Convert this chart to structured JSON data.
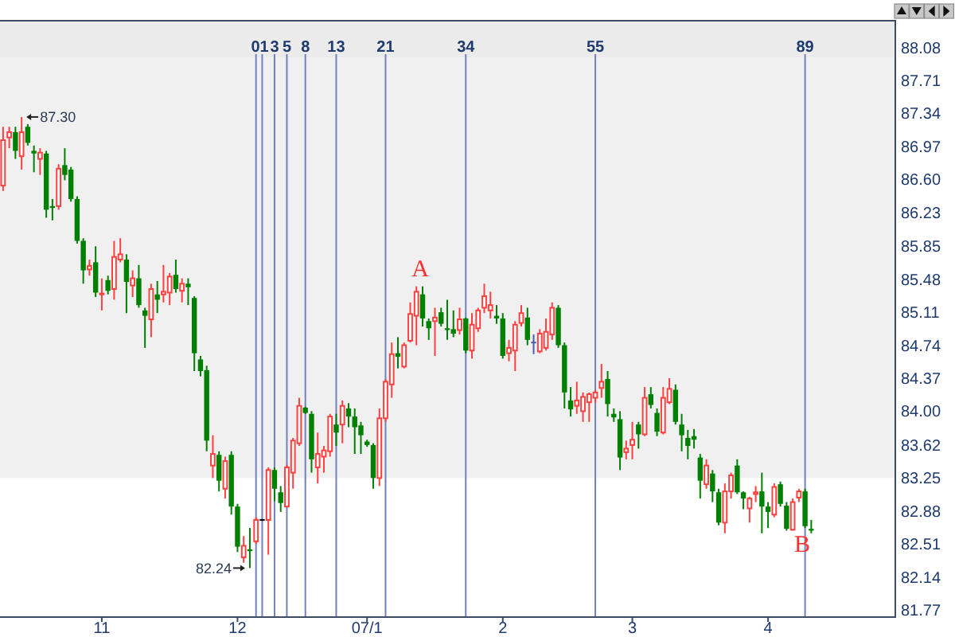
{
  "chart_data": {
    "type": "candlestick",
    "categories": [
      null,
      null,
      null,
      null,
      null,
      null,
      null,
      null,
      null,
      null,
      null,
      null,
      null,
      null,
      null,
      null,
      "11",
      null,
      null,
      null,
      null,
      null,
      null,
      null,
      null,
      null,
      null,
      null,
      null,
      null,
      null,
      null,
      null,
      null,
      null,
      null,
      null,
      null,
      "12",
      null,
      null,
      null,
      null,
      null,
      null,
      null,
      null,
      null,
      null,
      null,
      null,
      null,
      null,
      null,
      null,
      null,
      null,
      null,
      null,
      "07/1",
      null,
      null,
      null,
      null,
      null,
      null,
      null,
      null,
      null,
      null,
      null,
      null,
      null,
      null,
      null,
      null,
      null,
      null,
      null,
      null,
      null,
      "2",
      null,
      null,
      null,
      null,
      null,
      null,
      null,
      null,
      null,
      null,
      null,
      null,
      null,
      null,
      null,
      null,
      null,
      null,
      null,
      null,
      "3",
      null,
      null,
      null,
      null,
      null,
      null,
      null,
      null,
      null,
      null,
      null,
      null,
      null,
      null,
      null,
      null,
      null,
      null,
      null,
      null,
      null,
      "4",
      null,
      null,
      null,
      null,
      null,
      null,
      null,
      null,
      null,
      null,
      null,
      null,
      null,
      null,
      null,
      null,
      null,
      null,
      null,
      null
    ],
    "ohlc": [
      [
        86.53,
        87.19,
        86.47,
        87.04
      ],
      [
        87.07,
        87.19,
        86.95,
        87.13
      ],
      [
        87.13,
        87.19,
        86.83,
        86.92
      ],
      [
        86.86,
        87.3,
        86.71,
        87.13
      ],
      [
        87.19,
        87.22,
        86.98,
        87.01
      ],
      [
        86.92,
        86.98,
        86.68,
        86.89
      ],
      [
        86.83,
        86.95,
        86.65,
        86.9
      ],
      [
        86.89,
        86.92,
        86.17,
        86.26
      ],
      [
        86.3,
        86.38,
        86.14,
        86.28
      ],
      [
        86.3,
        86.77,
        86.26,
        86.72
      ],
      [
        86.76,
        86.95,
        86.59,
        86.65
      ],
      [
        86.71,
        86.74,
        86.35,
        86.38
      ],
      [
        86.38,
        86.41,
        85.88,
        85.91
      ],
      [
        85.91,
        85.94,
        85.43,
        85.58
      ],
      [
        85.59,
        85.7,
        85.52,
        85.63
      ],
      [
        85.67,
        85.85,
        85.28,
        85.33
      ],
      [
        85.31,
        85.49,
        85.13,
        85.32
      ],
      [
        85.47,
        85.52,
        85.31,
        85.35
      ],
      [
        85.37,
        85.91,
        85.25,
        85.73
      ],
      [
        85.7,
        85.94,
        85.67,
        85.76
      ],
      [
        85.7,
        85.76,
        85.1,
        85.45
      ],
      [
        85.41,
        85.58,
        85.28,
        85.49
      ],
      [
        85.49,
        85.64,
        85.16,
        85.19
      ],
      [
        85.13,
        85.16,
        84.71,
        85.07
      ],
      [
        85.03,
        85.43,
        84.83,
        85.37
      ],
      [
        85.31,
        85.46,
        85.1,
        85.25
      ],
      [
        85.31,
        85.64,
        85.22,
        85.34
      ],
      [
        85.33,
        85.55,
        85.19,
        85.51
      ],
      [
        85.53,
        85.7,
        85.33,
        85.37
      ],
      [
        85.35,
        85.49,
        85.22,
        85.43
      ],
      [
        85.43,
        85.49,
        85.19,
        85.39
      ],
      [
        85.27,
        85.29,
        84.45,
        84.65
      ],
      [
        84.58,
        84.62,
        84.39,
        84.45
      ],
      [
        84.46,
        84.51,
        83.55,
        83.67
      ],
      [
        83.39,
        83.73,
        83.25,
        83.52
      ],
      [
        83.51,
        83.55,
        83.1,
        83.22
      ],
      [
        83.13,
        83.49,
        83.02,
        83.44
      ],
      [
        83.51,
        83.55,
        82.84,
        82.93
      ],
      [
        82.93,
        82.96,
        82.42,
        82.48
      ],
      [
        82.36,
        82.6,
        82.3,
        82.49
      ],
      [
        82.45,
        82.69,
        82.24,
        82.43
      ],
      [
        82.54,
        82.81,
        82.51,
        82.78
      ],
      [
        82.78,
        82.79,
        82.77,
        82.78
      ],
      [
        82.78,
        83.37,
        82.39,
        83.34
      ],
      [
        83.34,
        83.37,
        82.99,
        83.13
      ],
      [
        83.09,
        83.16,
        82.87,
        82.97
      ],
      [
        82.93,
        83.4,
        82.92,
        83.37
      ],
      [
        83.31,
        83.7,
        83.13,
        83.67
      ],
      [
        83.64,
        84.15,
        83.61,
        84.06
      ],
      [
        84.04,
        84.05,
        83.97,
        83.98
      ],
      [
        83.97,
        84.0,
        83.31,
        83.46
      ],
      [
        83.37,
        83.76,
        83.19,
        83.52
      ],
      [
        83.49,
        83.61,
        83.31,
        83.56
      ],
      [
        83.55,
        83.97,
        83.49,
        83.94
      ],
      [
        83.85,
        83.97,
        83.61,
        83.76
      ],
      [
        83.85,
        84.12,
        83.64,
        84.06
      ],
      [
        84.03,
        84.09,
        83.82,
        83.94
      ],
      [
        83.94,
        84.03,
        83.52,
        83.82
      ],
      [
        83.84,
        83.88,
        83.52,
        83.73
      ],
      [
        83.66,
        83.68,
        83.6,
        83.62
      ],
      [
        83.62,
        83.64,
        83.13,
        83.25
      ],
      [
        83.25,
        84.03,
        83.16,
        83.92
      ],
      [
        83.92,
        84.36,
        83.88,
        84.33
      ],
      [
        84.3,
        84.77,
        84.15,
        84.64
      ],
      [
        84.65,
        84.83,
        84.48,
        84.61
      ],
      [
        84.5,
        84.77,
        84.48,
        84.74
      ],
      [
        84.79,
        85.22,
        84.77,
        85.09
      ],
      [
        85.07,
        85.4,
        84.74,
        85.34
      ],
      [
        85.31,
        85.4,
        84.95,
        85.04
      ],
      [
        85.01,
        85.04,
        84.8,
        84.93
      ],
      [
        85.01,
        85.16,
        84.62,
        85.05
      ],
      [
        85.11,
        85.16,
        84.95,
        84.98
      ],
      [
        84.93,
        85.25,
        84.8,
        84.91
      ],
      [
        84.92,
        85.13,
        84.83,
        84.87
      ],
      [
        84.91,
        85.16,
        84.86,
        85.03
      ],
      [
        85.04,
        85.05,
        84.65,
        84.68
      ],
      [
        84.68,
        85.1,
        84.59,
        84.97
      ],
      [
        84.93,
        85.16,
        84.89,
        85.13
      ],
      [
        85.16,
        85.43,
        85.1,
        85.29
      ],
      [
        85.13,
        85.34,
        85.04,
        85.19
      ],
      [
        85.07,
        85.19,
        84.98,
        85.04
      ],
      [
        85.04,
        85.1,
        84.59,
        84.62
      ],
      [
        84.65,
        84.8,
        84.56,
        84.71
      ],
      [
        84.68,
        85.01,
        84.45,
        84.97
      ],
      [
        84.99,
        85.19,
        84.95,
        85.1
      ],
      [
        85.05,
        85.16,
        84.74,
        84.8
      ],
      [
        84.77,
        84.86,
        84.64,
        84.77
      ],
      [
        84.67,
        84.92,
        84.65,
        84.87
      ],
      [
        84.71,
        85.04,
        84.68,
        84.89
      ],
      [
        84.86,
        85.22,
        84.8,
        85.16
      ],
      [
        85.16,
        85.19,
        84.71,
        84.74
      ],
      [
        84.74,
        84.77,
        84.03,
        84.21
      ],
      [
        84.12,
        84.27,
        83.94,
        84.02
      ],
      [
        84.06,
        84.33,
        83.97,
        84.12
      ],
      [
        84.0,
        84.21,
        83.88,
        84.16
      ],
      [
        84.1,
        84.21,
        83.88,
        84.19
      ],
      [
        84.15,
        84.24,
        84.09,
        84.21
      ],
      [
        84.26,
        84.53,
        84.15,
        84.33
      ],
      [
        84.36,
        84.45,
        83.94,
        84.08
      ],
      [
        83.97,
        84.03,
        83.88,
        83.93
      ],
      [
        83.91,
        84.0,
        83.34,
        83.48
      ],
      [
        83.54,
        83.67,
        83.46,
        83.58
      ],
      [
        83.62,
        83.88,
        83.46,
        83.68
      ],
      [
        83.85,
        83.88,
        83.58,
        83.74
      ],
      [
        83.74,
        84.27,
        83.72,
        84.15
      ],
      [
        84.19,
        84.27,
        84.03,
        84.07
      ],
      [
        83.98,
        84.03,
        83.72,
        83.77
      ],
      [
        83.76,
        84.27,
        83.74,
        84.15
      ],
      [
        84.1,
        84.37,
        84.08,
        84.25
      ],
      [
        84.24,
        84.3,
        83.85,
        83.88
      ],
      [
        83.85,
        83.97,
        83.55,
        83.73
      ],
      [
        83.7,
        83.79,
        83.46,
        83.61
      ],
      [
        83.72,
        83.8,
        83.58,
        83.68
      ],
      [
        83.48,
        83.52,
        83.02,
        83.22
      ],
      [
        83.18,
        83.46,
        83.13,
        83.39
      ],
      [
        83.3,
        83.34,
        82.98,
        83.1
      ],
      [
        83.09,
        83.13,
        82.72,
        82.75
      ],
      [
        82.75,
        83.19,
        82.63,
        83.1
      ],
      [
        83.1,
        83.31,
        83.02,
        83.28
      ],
      [
        83.39,
        83.46,
        83.07,
        83.09
      ],
      [
        83.09,
        83.1,
        82.9,
        83.02
      ],
      [
        82.91,
        83.04,
        82.75,
        83.02
      ],
      [
        83.07,
        83.16,
        82.98,
        83.09
      ],
      [
        83.1,
        83.31,
        82.63,
        82.93
      ],
      [
        82.93,
        82.98,
        82.69,
        82.87
      ],
      [
        82.84,
        83.19,
        82.81,
        83.15
      ],
      [
        83.18,
        83.21,
        82.93,
        82.96
      ],
      [
        82.94,
        82.98,
        82.66,
        82.68
      ],
      [
        82.67,
        83.02,
        82.66,
        82.98
      ],
      [
        83.03,
        83.13,
        82.98,
        83.1
      ],
      [
        83.1,
        83.13,
        82.69,
        82.71
      ],
      [
        82.68,
        82.78,
        82.63,
        82.66
      ],
      null,
      null,
      null,
      null,
      null,
      null,
      null,
      null,
      null,
      null,
      null,
      null,
      null
    ],
    "colors": [
      "#ff4040",
      "#ff4040",
      "#008000",
      "#ff4040",
      "#008000",
      "#008000",
      "#ff4040",
      "#008000",
      "#008000",
      "#ff4040",
      "#008000",
      "#008000",
      "#008000",
      "#008000",
      "#ff4040",
      "#008000",
      "#ff4040",
      "#008000",
      "#ff4040",
      "#ff4040",
      "#008000",
      "#ff4040",
      "#008000",
      "#008000",
      "#ff4040",
      "#008000",
      "#ff4040",
      "#ff4040",
      "#008000",
      "#ff4040",
      "#008000",
      "#008000",
      "#008000",
      "#008000",
      "#ff4040",
      "#008000",
      "#ff4040",
      "#008000",
      "#008000",
      "#ff4040",
      "#008000",
      "#ff4040",
      "#000000",
      "#ff4040",
      "#008000",
      "#008000",
      "#ff4040",
      "#ff4040",
      "#ff4040",
      "#008000",
      "#008000",
      "#ff4040",
      "#ff4040",
      "#ff4040",
      "#008000",
      "#ff4040",
      "#008000",
      "#008000",
      "#008000",
      "#008000",
      "#008000",
      "#ff4040",
      "#ff4040",
      "#ff4040",
      "#008000",
      "#ff4040",
      "#ff4040",
      "#ff4040",
      "#008000",
      "#008000",
      "#ff4040",
      "#008000",
      "#008000",
      "#008000",
      "#ff4040",
      "#008000",
      "#ff4040",
      "#ff4040",
      "#ff4040",
      "#ff4040",
      "#008000",
      "#008000",
      "#ff4040",
      "#ff4040",
      "#ff4040",
      "#008000",
      "#4b5cb0",
      "#ff4040",
      "#ff4040",
      "#ff4040",
      "#008000",
      "#008000",
      "#008000",
      "#ff4040",
      "#ff4040",
      "#ff4040",
      "#ff4040",
      "#ff4040",
      "#008000",
      "#008000",
      "#008000",
      "#ff4040",
      "#ff4040",
      "#008000",
      "#ff4040",
      "#008000",
      "#008000",
      "#ff4040",
      "#ff4040",
      "#008000",
      "#008000",
      "#008000",
      "#008000",
      "#008000",
      "#ff4040",
      "#008000",
      "#008000",
      "#ff4040",
      "#ff4040",
      "#008000",
      "#008000",
      "#ff4040",
      "#ff4040",
      "#008000",
      "#008000",
      "#ff4040",
      "#008000",
      "#008000",
      "#ff4040",
      "#ff4040",
      "#008000",
      "#008000",
      null,
      null,
      null,
      null,
      null,
      null,
      null,
      null,
      null,
      null,
      null,
      null,
      null
    ],
    "x2lim": [
      -41.5,
      103.5
    ],
    "x2ticks": [
      0,
      1,
      3,
      5,
      8,
      13,
      21,
      34,
      55,
      89
    ],
    "ylim": [
      81.69,
      88.38
    ],
    "yticks": [
      88.08,
      87.71,
      87.34,
      86.97,
      {
        "value": 86.6,
        "label": "86.60"
      },
      86.23,
      85.85,
      85.48,
      85.11,
      84.74,
      84.37,
      {
        "value": 84,
        "label": "84.00"
      },
      83.62,
      83.25,
      82.88,
      82.51,
      82.14,
      81.77
    ],
    "ref_lines": [
      {
        "axis": "x2",
        "value": 0,
        "color": "#7080c0"
      },
      {
        "axis": "x2",
        "value": 1,
        "color": "#7080c0"
      },
      {
        "axis": "x2",
        "value": 3,
        "color": "#7080c0"
      },
      {
        "axis": "x2",
        "value": 5,
        "color": "#7080c0"
      },
      {
        "axis": "x2",
        "value": 8,
        "color": "#7080c0"
      },
      {
        "axis": "x2",
        "value": 13,
        "color": "#7080c0"
      },
      {
        "axis": "x2",
        "value": 21,
        "color": "#7080c0"
      },
      {
        "axis": "x2",
        "value": 34,
        "color": "#7080c0"
      },
      {
        "axis": "x2",
        "value": 55,
        "color": "#7080c0"
      },
      {
        "axis": "x2",
        "value": 89,
        "color": "#7080c0"
      }
    ],
    "bands": [
      {
        "axis": "y",
        "from": 83.25,
        "to": 87.97,
        "color": "#f0f0f0"
      }
    ],
    "annotations": [
      "87.30",
      "82.24",
      "A",
      "B"
    ]
  }
}
